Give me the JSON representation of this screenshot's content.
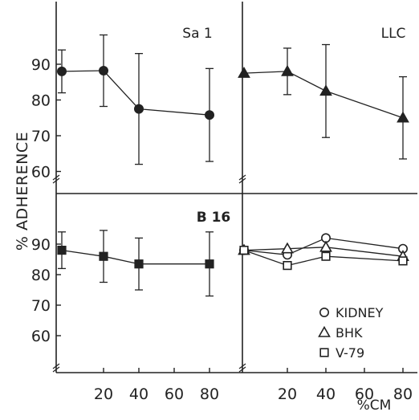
{
  "figure": {
    "y_axis_label": "% ADHERENCE",
    "x_axis_label": "%CM",
    "x_ticks": [
      "20",
      "40",
      "60",
      "80"
    ],
    "y_ticks": [
      "60",
      "70",
      "80",
      "90"
    ]
  },
  "chart_data": [
    {
      "type": "line",
      "panel_label": "Sa 1",
      "x": [
        0,
        20,
        40,
        80
      ],
      "series": [
        {
          "marker": "filled-circle",
          "values": [
            88,
            88.2,
            77.5,
            75.8
          ],
          "error": [
            6,
            10,
            15.5,
            13
          ]
        }
      ],
      "ylim": [
        56,
        100
      ]
    },
    {
      "type": "line",
      "panel_label": "LLC",
      "x": [
        0,
        20,
        40,
        80
      ],
      "series": [
        {
          "marker": "filled-triangle",
          "values": [
            87.5,
            88,
            82.5,
            75
          ],
          "error": [
            0,
            6.5,
            13,
            11.5
          ]
        }
      ],
      "ylim": [
        56,
        100
      ]
    },
    {
      "type": "line",
      "panel_label": "B 16",
      "x": [
        0,
        20,
        40,
        80
      ],
      "series": [
        {
          "marker": "filled-square",
          "values": [
            88,
            86,
            83.5,
            83.5
          ],
          "error": [
            6,
            8.5,
            8.5,
            10.5
          ]
        }
      ],
      "ylim": [
        56,
        96
      ]
    },
    {
      "type": "line",
      "panel_label": "",
      "x": [
        0,
        20,
        40,
        80
      ],
      "series": [
        {
          "name": "KIDNEY",
          "marker": "open-circle",
          "values": [
            88,
            86.5,
            92,
            88.5
          ],
          "error": [
            0,
            0,
            0,
            0
          ]
        },
        {
          "name": "BHK",
          "marker": "open-triangle",
          "values": [
            88,
            88.5,
            89,
            86
          ],
          "error": [
            0,
            0,
            0,
            0
          ]
        },
        {
          "name": "V-79",
          "marker": "open-square",
          "values": [
            88,
            83,
            86,
            84.5
          ],
          "error": [
            0,
            0,
            0,
            0
          ]
        }
      ],
      "legend": "bottom-right",
      "ylim": [
        56,
        96
      ]
    }
  ]
}
